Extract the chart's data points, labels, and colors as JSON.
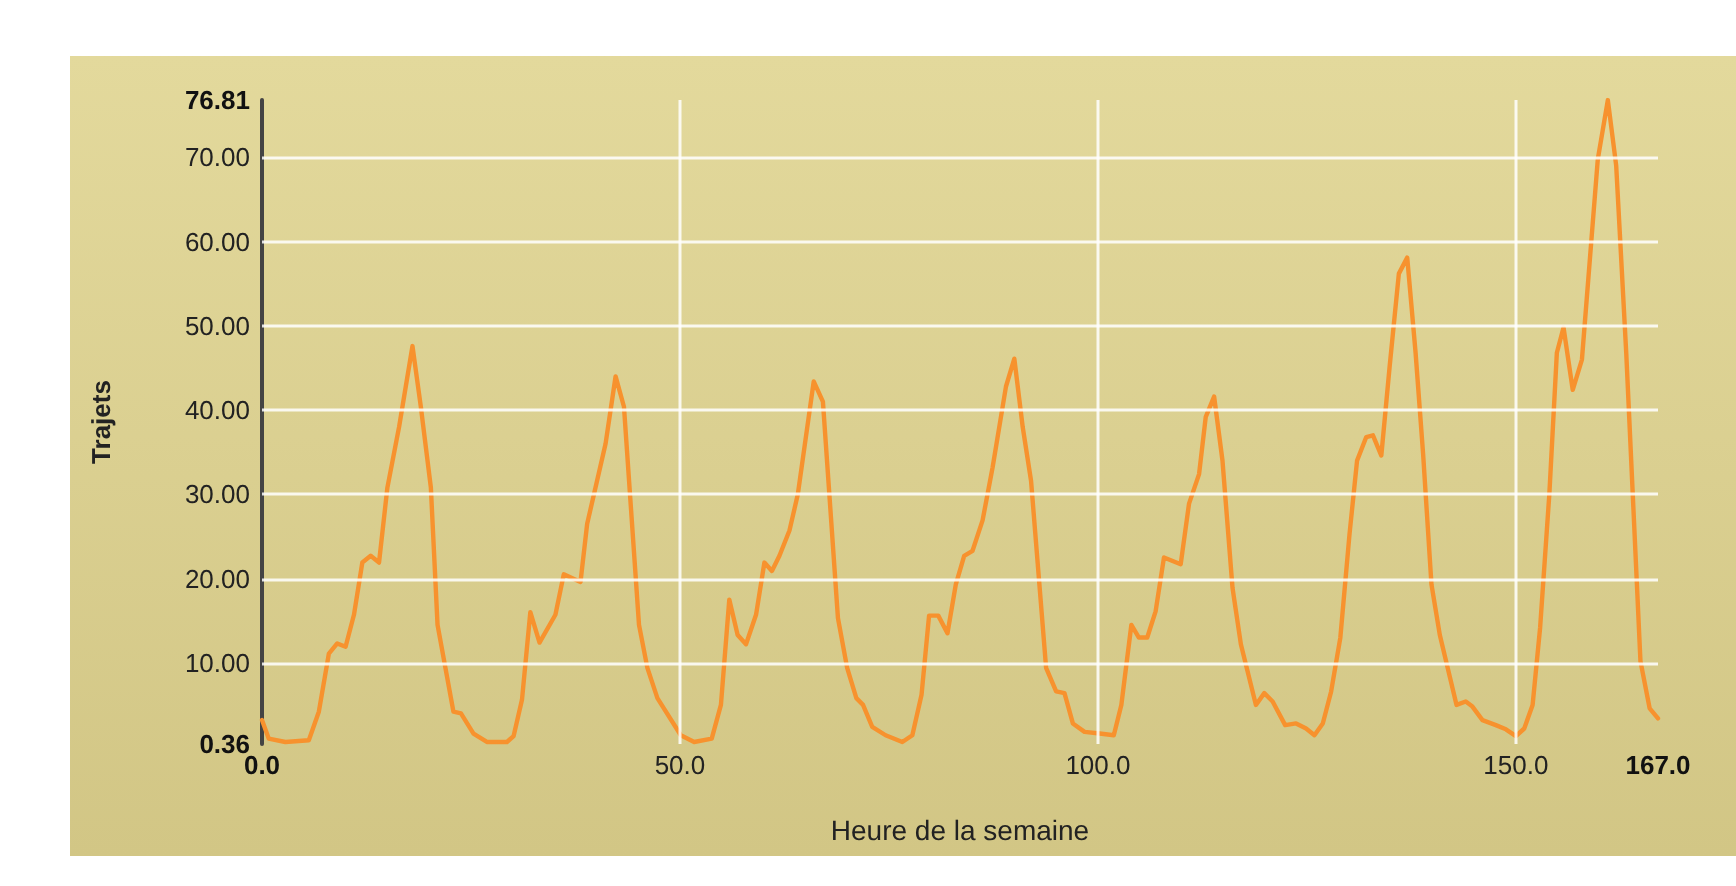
{
  "chart_data": {
    "type": "line",
    "xlabel": "Heure de la semaine",
    "ylabel": "Trajets",
    "series": [
      {
        "color": "#f7922e",
        "x": [
          0,
          0.8,
          2.8,
          5.6,
          6.8,
          8,
          9,
          10,
          11,
          12,
          13,
          14,
          15,
          16.4,
          18,
          19,
          20.2,
          21,
          22.9,
          23.8,
          25.3,
          26.9,
          29.3,
          30.1,
          31.1,
          32.1,
          33.2,
          35.1,
          36.1,
          38.1,
          38.9,
          41.1,
          42.3,
          43.3,
          45.1,
          46.1,
          47.3,
          50.1,
          51.7,
          53.8,
          54.9,
          55.9,
          56.9,
          57.9,
          59.1,
          60.1,
          61,
          61.9,
          63.1,
          64.1,
          66,
          67.1,
          68.9,
          70,
          71.1,
          71.9,
          73,
          74.6,
          76.6,
          77.8,
          78.9,
          79.8,
          80.9,
          82,
          83,
          84,
          85,
          86.2,
          87.4,
          89,
          90,
          91,
          92,
          93.8,
          95,
          96,
          97,
          98.4,
          100.2,
          101.9,
          102.8,
          104,
          104.9,
          105.9,
          106.9,
          107.9,
          109.9,
          110.9,
          112.1,
          112.9,
          113.9,
          114.9,
          116.1,
          117.1,
          118.9,
          119.9,
          120.9,
          122.4,
          123.7,
          124.9,
          125.9,
          126.9,
          127.9,
          129,
          130.1,
          131,
          132.1,
          132.9,
          133.9,
          134.9,
          136,
          137,
          138,
          138.9,
          139.9,
          140.9,
          142.9,
          144,
          144.8,
          146,
          147.6,
          148.8,
          150,
          151,
          152,
          152.9,
          154,
          154.9,
          155.7,
          156.8,
          157.9,
          159.8,
          161,
          162,
          163.2,
          164.9,
          166,
          167
        ],
        "values": [
          3.2,
          1,
          0.6,
          0.8,
          4.2,
          11.1,
          12.3,
          11.9,
          15.7,
          21.9,
          22.7,
          21.9,
          30.8,
          38,
          47.6,
          40.4,
          30.8,
          14.5,
          4.2,
          4,
          1.6,
          0.6,
          0.6,
          1.3,
          5.6,
          16,
          12.4,
          15.7,
          20.5,
          19.6,
          26.5,
          36,
          44,
          40.4,
          14.5,
          9.4,
          5.8,
          1.4,
          0.6,
          1,
          5,
          17.5,
          13.3,
          12.2,
          15.7,
          21.9,
          20.9,
          22.7,
          25.7,
          30,
          43.4,
          41,
          15.3,
          9.4,
          5.8,
          5,
          2.4,
          1.4,
          0.6,
          1.4,
          6.2,
          15.6,
          15.6,
          13.5,
          19.3,
          22.7,
          23.3,
          26.9,
          33.2,
          42.8,
          46.1,
          38,
          31.6,
          9.4,
          6.6,
          6.4,
          2.8,
          1.8,
          1.6,
          1.4,
          5,
          14.5,
          13,
          13,
          16.1,
          22.5,
          21.7,
          28.9,
          32.4,
          39.2,
          41.6,
          34,
          18.9,
          12.2,
          5,
          6.4,
          5.4,
          2.6,
          2.8,
          2.2,
          1.4,
          2.8,
          6.6,
          13,
          25.3,
          34,
          36.8,
          37,
          34.6,
          45.2,
          56.2,
          58.1,
          46.8,
          34.8,
          19.3,
          13.3,
          5,
          5.4,
          4.8,
          3.2,
          2.6,
          2.1,
          1.3,
          2.2,
          5,
          14.2,
          30,
          46.8,
          49.8,
          42.4,
          46,
          69.8,
          76.8,
          69,
          46.8,
          10.2,
          4.6,
          3.4
        ]
      }
    ],
    "xlim": [
      0,
      167
    ],
    "xticks": [
      {
        "value": 0,
        "label": "0.0"
      },
      {
        "value": 50,
        "label": "50.0"
      },
      {
        "value": 100,
        "label": "100.0"
      },
      {
        "value": 150,
        "label": "150.0"
      },
      {
        "value": 167,
        "label": "167.0"
      }
    ],
    "ylim": [
      0.36,
      76.81
    ],
    "yticks": [
      0.36,
      {
        "value": 10,
        "label": "10.00"
      },
      {
        "value": 20,
        "label": "20.00"
      },
      {
        "value": 30,
        "label": "30.00"
      },
      {
        "value": 40,
        "label": "40.00"
      },
      {
        "value": 50,
        "label": "50.00"
      },
      {
        "value": 60,
        "label": "60.00"
      },
      {
        "value": 70,
        "label": "70.00"
      },
      76.81
    ],
    "grid": true,
    "marker": "none",
    "line_style": "solid"
  }
}
